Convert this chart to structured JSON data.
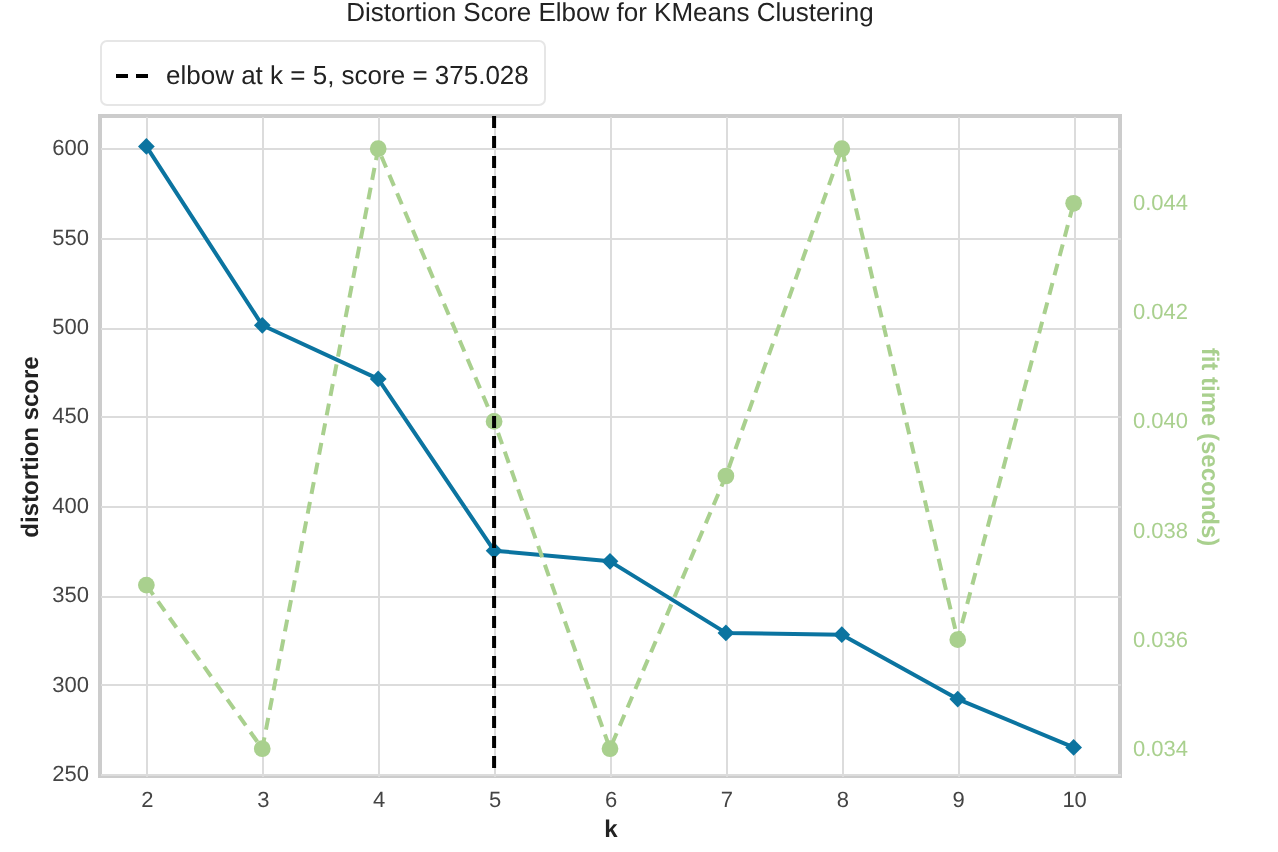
{
  "chart_data": {
    "type": "line",
    "title": "Distortion Score Elbow for KMeans Clustering",
    "xlabel": "k",
    "ylabel": "distortion score",
    "y2label": "fit time (seconds)",
    "x": [
      2,
      3,
      4,
      5,
      6,
      7,
      8,
      9,
      10
    ],
    "series": [
      {
        "color": "#0b74a0",
        "marker": "diamond",
        "line_style": "solid",
        "values": [
          601,
          501,
          471,
          375,
          369,
          329,
          328,
          292,
          265
        ]
      },
      {
        "color": "#a9d08e",
        "marker": "circle",
        "line_style": "dashed",
        "axis": "y2",
        "values": [
          0.037,
          0.034,
          0.045,
          0.04,
          0.034,
          0.039,
          0.045,
          0.036,
          0.044
        ]
      }
    ],
    "xlim": [
      1.6,
      10.4
    ],
    "xticks": [
      2,
      3,
      4,
      5,
      6,
      7,
      8,
      9,
      10
    ],
    "ylim": [
      249,
      618
    ],
    "yticks": [
      250,
      300,
      350,
      400,
      450,
      500,
      550,
      600
    ],
    "y2lim": [
      0.0335,
      0.0456
    ],
    "y2ticks": [
      0.034,
      0.036,
      0.038,
      {
        "value": 0.04,
        "label": "0.040"
      },
      0.042,
      0.044
    ],
    "ref_lines": [
      {
        "axis": "x",
        "value": 5,
        "label": "elbow at k = 5, score = 375.028",
        "color": "#000000",
        "line_style": "dashed"
      }
    ],
    "grid": true,
    "legend": "top"
  }
}
